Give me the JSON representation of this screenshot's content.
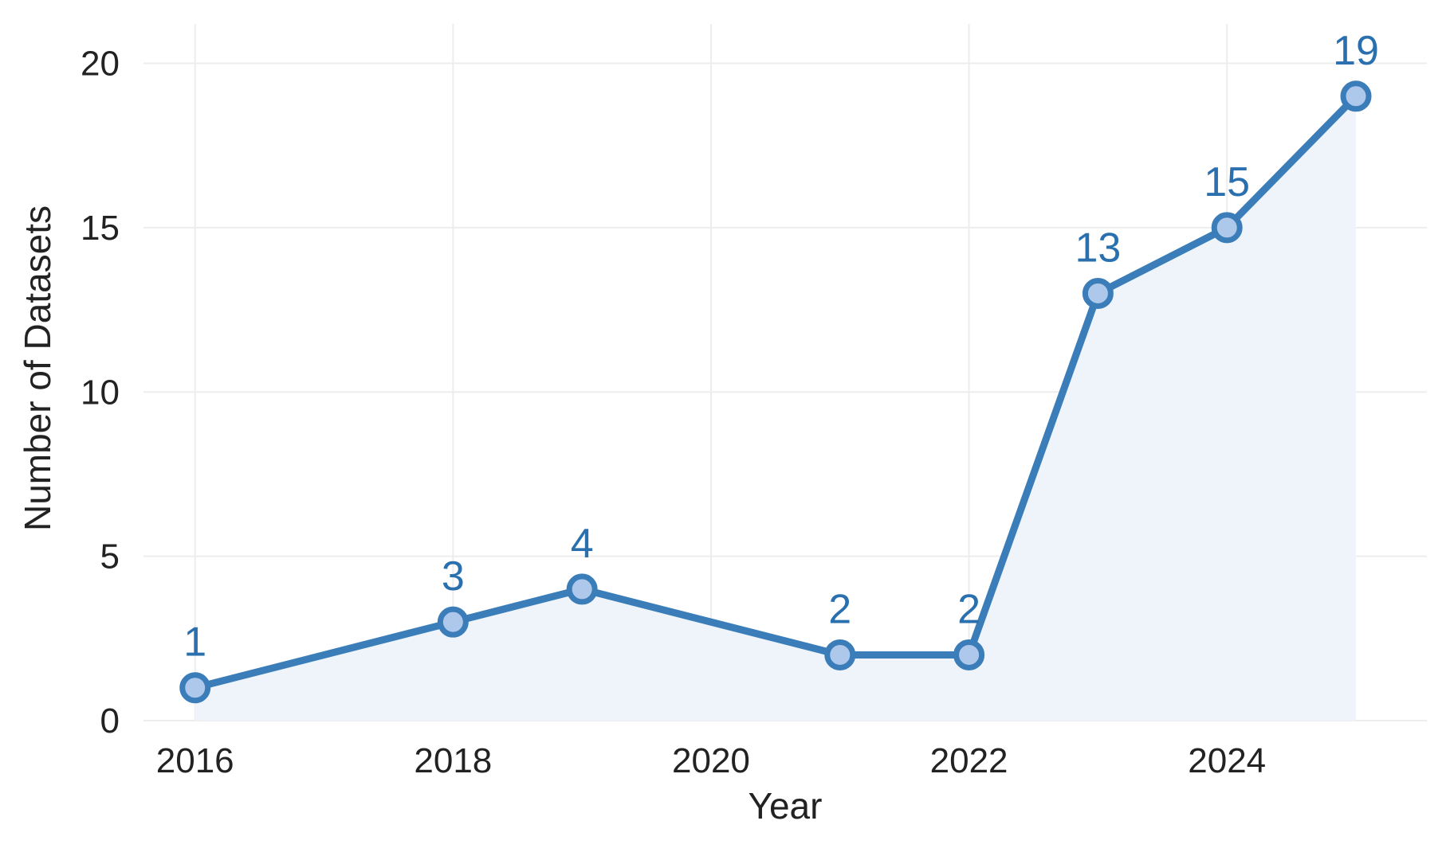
{
  "chart_data": {
    "type": "line",
    "title": "",
    "xlabel": "Year",
    "ylabel": "Number of Datasets",
    "xlim": [
      2015.6,
      2025.55
    ],
    "ylim": [
      0,
      21.2
    ],
    "x_ticks": [
      2016,
      2018,
      2020,
      2022,
      2024
    ],
    "y_ticks": [
      0,
      5,
      10,
      15,
      20
    ],
    "grid": true,
    "legend": "none",
    "series": [
      {
        "x": [
          2016,
          2018,
          2019,
          2021,
          2022,
          2023,
          2024,
          2025
        ],
        "values": [
          1,
          3,
          4,
          2,
          2,
          13,
          15,
          19
        ],
        "data_labels": [
          "1",
          "3",
          "4",
          "2",
          "2",
          "13",
          "15",
          "19"
        ]
      }
    ],
    "colors": {
      "line": "#3a7db8",
      "marker_fill": "#aec8ec",
      "area_fill": "#eef4fa",
      "label": "#2a6fae",
      "grid": "#ededed",
      "text": "#222222"
    }
  }
}
